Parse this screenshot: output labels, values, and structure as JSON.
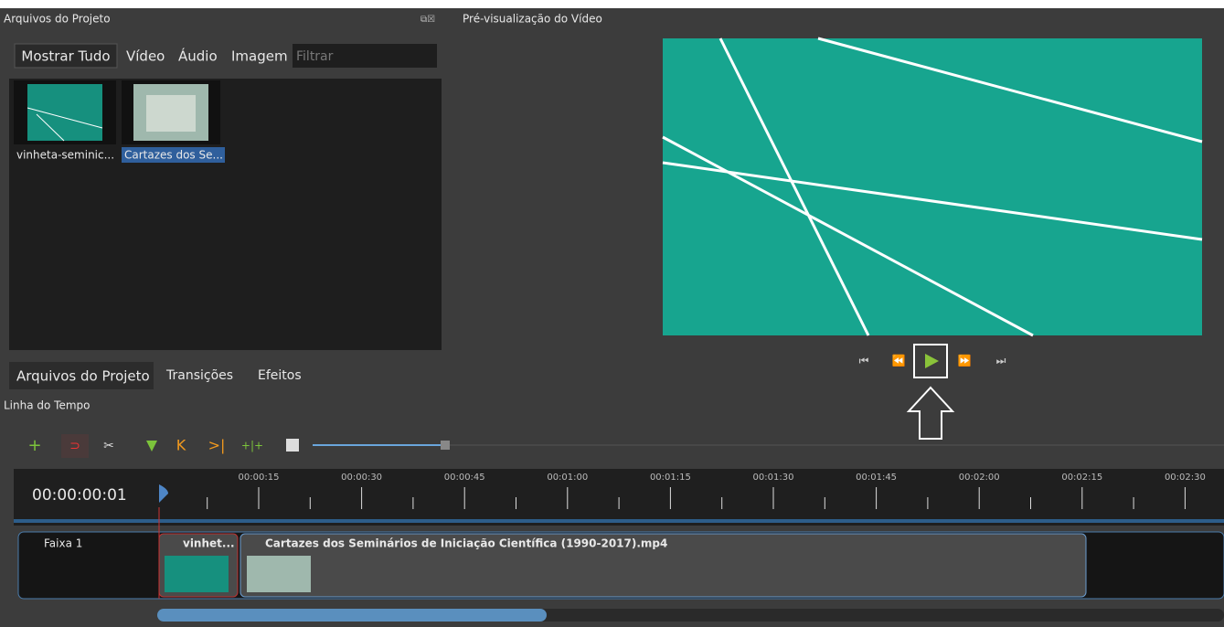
{
  "project_files": {
    "title": "Arquivos do Projeto",
    "filters": [
      "Mostrar Tudo",
      "Vídeo",
      "Áudio",
      "Imagem"
    ],
    "filter_placeholder": "Filtrar",
    "files": [
      "vinheta-seminic...",
      "Cartazes dos Se..."
    ],
    "tabs": [
      "Arquivos do Projeto",
      "Transições",
      "Efeitos"
    ]
  },
  "preview": {
    "title": "Pré-visualização do Vídeo"
  },
  "timeline": {
    "title": "Linha do Tempo",
    "timecode": "00:00:00:01",
    "ruler": [
      "00:00:15",
      "00:00:30",
      "00:00:45",
      "00:01:00",
      "00:01:15",
      "00:01:30",
      "00:01:45",
      "00:02:00",
      "00:02:15",
      "00:02:30"
    ],
    "track": "Faixa 1",
    "clips": [
      "vinhet...",
      "Cartazes dos Seminários de Iniciação Científica (1990-2017).mp4"
    ]
  }
}
